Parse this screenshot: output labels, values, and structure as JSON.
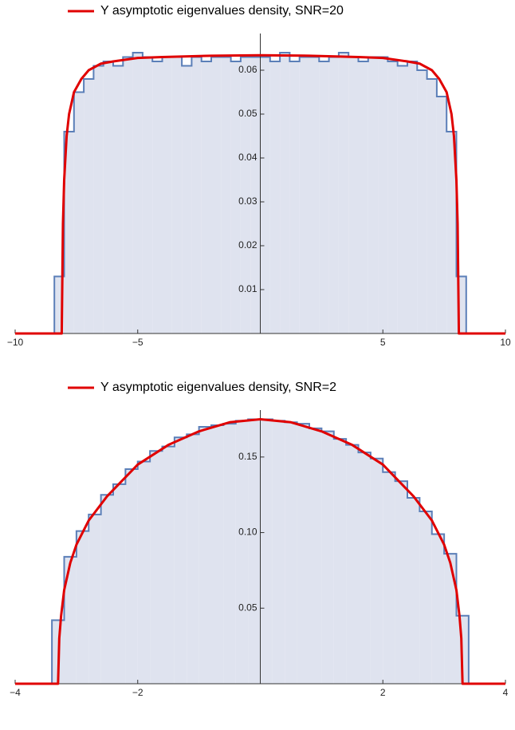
{
  "chart_data": [
    {
      "type": "histogram",
      "bins": [
        -10,
        -9.6,
        -9.2,
        -8.8,
        -8.4,
        -8,
        -7.6,
        -7.2,
        -6.8,
        -6.4,
        -6,
        -5.6,
        -5.2,
        -4.8,
        -4.4,
        -4,
        -3.6,
        -3.2,
        -2.8,
        -2.4,
        -2,
        -1.6,
        -1.2,
        -0.8,
        -0.4,
        0,
        0.4,
        0.8,
        1.2,
        1.6,
        2,
        2.4,
        2.8,
        3.2,
        3.6,
        4,
        4.4,
        4.8,
        5.2,
        5.6,
        6,
        6.4,
        6.8,
        7.2,
        7.6,
        8,
        8.4,
        8.8,
        9.2,
        9.6,
        10
      ],
      "counts": [
        0,
        0,
        0,
        0,
        0.013,
        0.046,
        0.055,
        0.058,
        0.061,
        0.062,
        0.061,
        0.063,
        0.064,
        0.063,
        0.062,
        0.063,
        0.063,
        0.061,
        0.063,
        0.062,
        0.063,
        0.063,
        0.062,
        0.063,
        0.063,
        0.063,
        0.062,
        0.064,
        0.062,
        0.063,
        0.063,
        0.062,
        0.063,
        0.064,
        0.063,
        0.062,
        0.063,
        0.063,
        0.062,
        0.061,
        0.062,
        0.06,
        0.058,
        0.054,
        0.046,
        0.013,
        0,
        0,
        0,
        0
      ],
      "color": "#5b7fb8",
      "fill": "#dfe3ef",
      "curve": {
        "name": "Y asymptotic eigenvalues density, SNR=20",
        "color": "#e00000",
        "x": [
          -10,
          -8.1,
          -8.05,
          -8,
          -7.9,
          -7.8,
          -7.6,
          -7.3,
          -7,
          -6.5,
          -6,
          -5,
          -4,
          -2,
          0,
          2,
          4,
          5,
          6,
          6.5,
          7,
          7.3,
          7.6,
          7.8,
          7.9,
          8,
          8.05,
          8.1,
          10
        ],
        "values": [
          0,
          0,
          0.025,
          0.035,
          0.045,
          0.05,
          0.055,
          0.058,
          0.06,
          0.0615,
          0.062,
          0.0628,
          0.063,
          0.0633,
          0.0634,
          0.0633,
          0.063,
          0.0628,
          0.062,
          0.0615,
          0.06,
          0.058,
          0.055,
          0.05,
          0.045,
          0.035,
          0.025,
          0,
          0
        ]
      },
      "xlim": [
        -10,
        10
      ],
      "ylim": [
        0,
        0.068
      ],
      "xticks": [
        {
          "value": -10,
          "label": "−10"
        },
        {
          "value": -5,
          "label": "−5"
        },
        5,
        10
      ],
      "yticks": [
        0.01,
        0.02,
        0.03,
        0.04,
        0.05,
        0.06
      ]
    },
    {
      "type": "histogram",
      "bins": [
        -4,
        -3.8,
        -3.6,
        -3.4,
        -3.2,
        -3,
        -2.8,
        -2.6,
        -2.4,
        -2.2,
        -2,
        -1.8,
        -1.6,
        -1.4,
        -1.2,
        -1,
        -0.8,
        -0.6,
        -0.4,
        -0.2,
        0,
        0.2,
        0.4,
        0.6,
        0.8,
        1,
        1.2,
        1.4,
        1.6,
        1.8,
        2,
        2.2,
        2.4,
        2.6,
        2.8,
        3,
        3.2,
        3.4,
        3.6,
        3.8,
        4
      ],
      "counts": [
        0,
        0,
        0,
        0.042,
        0.084,
        0.101,
        0.112,
        0.125,
        0.132,
        0.142,
        0.147,
        0.154,
        0.157,
        0.163,
        0.165,
        0.17,
        0.171,
        0.172,
        0.174,
        0.175,
        0.175,
        0.174,
        0.173,
        0.172,
        0.169,
        0.167,
        0.162,
        0.158,
        0.153,
        0.149,
        0.14,
        0.134,
        0.123,
        0.114,
        0.099,
        0.086,
        0.045,
        0,
        0,
        0
      ],
      "color": "#5b7fb8",
      "fill": "#dfe3ef",
      "curve": {
        "name": "Y asymptotic eigenvalues density, SNR=2",
        "color": "#e00000",
        "x": [
          -4,
          -3.3,
          -3.28,
          -3.25,
          -3.2,
          -3.1,
          -3,
          -2.8,
          -2.5,
          -2,
          -1.5,
          -1,
          -0.5,
          0,
          0.5,
          1,
          1.5,
          2,
          2.5,
          2.8,
          3,
          3.1,
          3.2,
          3.25,
          3.28,
          3.3,
          4
        ],
        "values": [
          0,
          0,
          0.03,
          0.045,
          0.062,
          0.08,
          0.092,
          0.108,
          0.124,
          0.145,
          0.158,
          0.167,
          0.173,
          0.175,
          0.173,
          0.167,
          0.158,
          0.145,
          0.124,
          0.108,
          0.092,
          0.08,
          0.062,
          0.045,
          0.03,
          0,
          0
        ]
      },
      "xlim": [
        -4,
        4
      ],
      "ylim": [
        0,
        0.18
      ],
      "xticks": [
        {
          "value": -4,
          "label": "−4"
        },
        {
          "value": -2,
          "label": "−2"
        },
        2,
        4
      ],
      "yticks": [
        0.05,
        {
          "value": 0.1,
          "label": "0.10"
        },
        0.15
      ]
    }
  ]
}
